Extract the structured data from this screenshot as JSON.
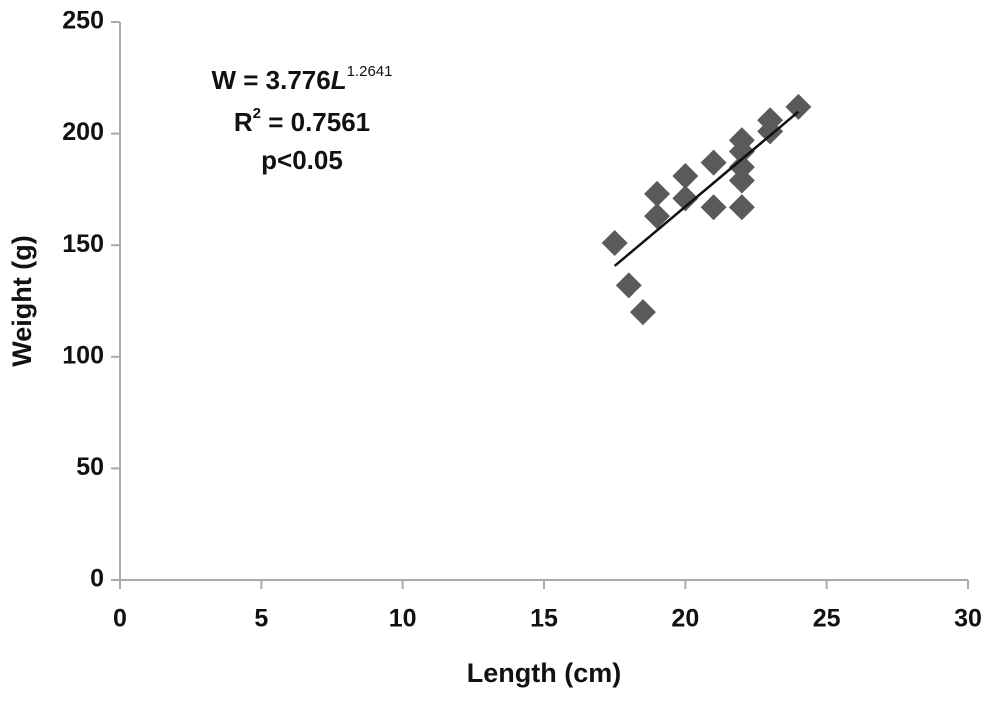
{
  "chart_data": {
    "type": "scatter",
    "x_label": "Length (cm)",
    "y_label": "Weight (g)",
    "x": [
      17.5,
      18,
      18.5,
      19,
      19,
      20,
      20,
      21,
      21,
      22,
      22,
      22,
      22,
      22,
      23,
      23,
      24
    ],
    "values": [
      151,
      132,
      120,
      173,
      163,
      181,
      171,
      187,
      167,
      197,
      192,
      185,
      179,
      167,
      206,
      201,
      212
    ],
    "color": "#5a5a5a",
    "trendline": {
      "x": [
        17.5,
        24
      ],
      "values": [
        140.7,
        209.8
      ],
      "color": "#111111"
    },
    "annotation": {
      "equation": {
        "prefix": "W = 3.776",
        "variable": "L",
        "exponent": "1.2641"
      },
      "r_squared": {
        "base": "R",
        "exponent": "2",
        "value": " = 0.7561"
      },
      "p_value": "p<0.05"
    },
    "xlim": [
      0,
      30
    ],
    "xticks": [
      0,
      5,
      10,
      15,
      20,
      25,
      30
    ],
    "ylim": [
      0,
      250
    ],
    "yticks": [
      0,
      50,
      100,
      150,
      200,
      250
    ],
    "grid": false
  }
}
